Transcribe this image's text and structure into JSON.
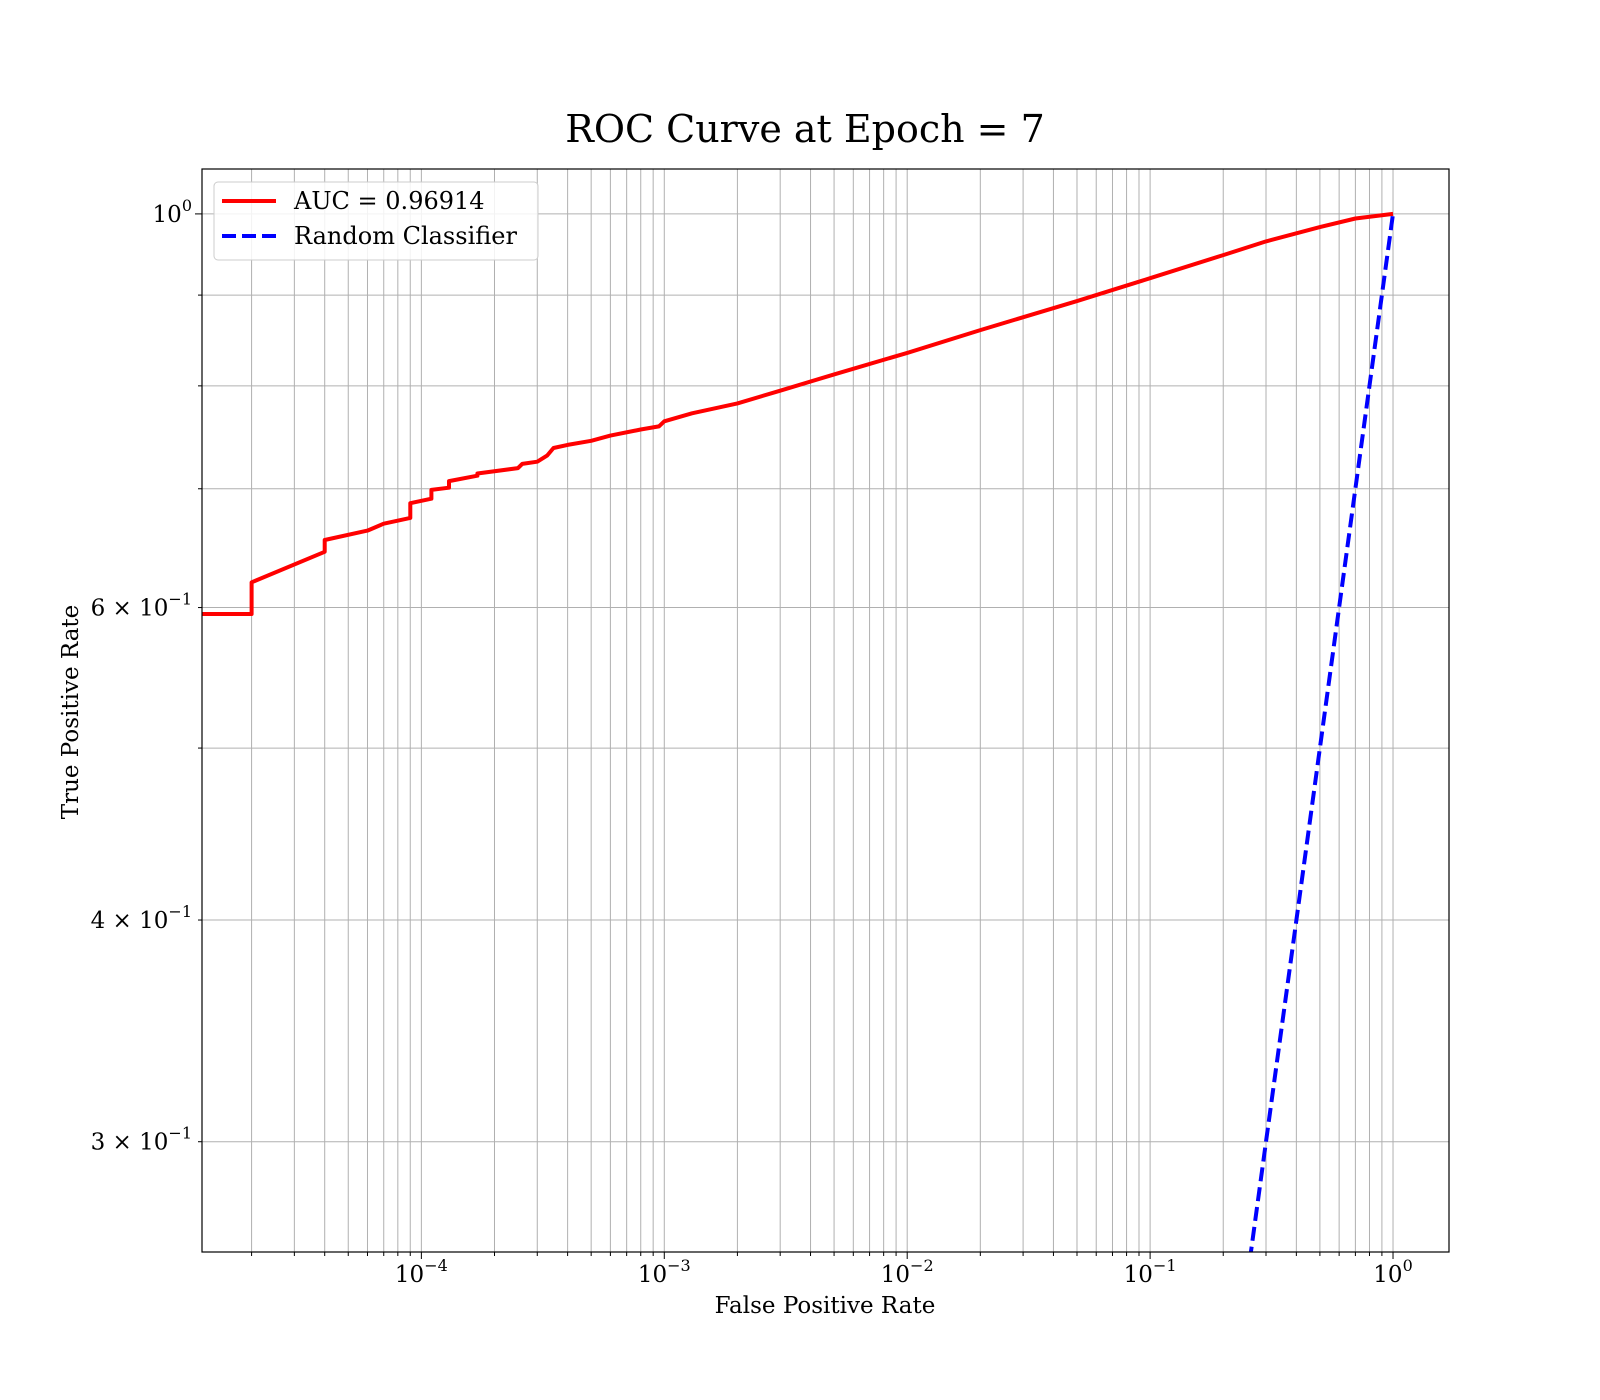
{
  "chart_data": {
    "type": "line",
    "title": "ROC Curve at Epoch = 7",
    "xlabel": "False Positive Rate",
    "ylabel": "True Positive Rate",
    "xscale": "log",
    "yscale": "log",
    "xlim": [
      1.25e-05,
      1.7
    ],
    "ylim": [
      0.26,
      1.06
    ],
    "grid": "both (major and minor)",
    "legend_position": "top-left",
    "x_ticks": [
      {
        "value": 0.0001,
        "base": "10",
        "exp": "−4"
      },
      {
        "value": 0.001,
        "base": "10",
        "exp": "−3"
      },
      {
        "value": 0.01,
        "base": "10",
        "exp": "−2"
      },
      {
        "value": 0.1,
        "base": "10",
        "exp": "−1"
      },
      {
        "value": 1,
        "base": "10",
        "exp": "0"
      }
    ],
    "y_ticks": [
      {
        "value": 1.0,
        "base": "10",
        "exp": "0"
      },
      {
        "value": 0.6,
        "base": "6 × 10",
        "exp": "−1"
      },
      {
        "value": 0.4,
        "base": "4 × 10",
        "exp": "−1"
      },
      {
        "value": 0.3,
        "base": "3 × 10",
        "exp": "−1"
      }
    ],
    "series": [
      {
        "name": "AUC = 0.96914",
        "color": "#ff0000",
        "style": "solid",
        "points": [
          [
            1.25e-05,
            0.595
          ],
          [
            2e-05,
            0.595
          ],
          [
            2e-05,
            0.62
          ],
          [
            4e-05,
            0.645
          ],
          [
            4e-05,
            0.655
          ],
          [
            6e-05,
            0.663
          ],
          [
            7e-05,
            0.669
          ],
          [
            9e-05,
            0.674
          ],
          [
            9e-05,
            0.687
          ],
          [
            0.00011,
            0.691
          ],
          [
            0.00011,
            0.699
          ],
          [
            0.00013,
            0.701
          ],
          [
            0.00013,
            0.707
          ],
          [
            0.00017,
            0.712
          ],
          [
            0.00017,
            0.714
          ],
          [
            0.00025,
            0.719
          ],
          [
            0.00026,
            0.723
          ],
          [
            0.0003,
            0.725
          ],
          [
            0.00033,
            0.731
          ],
          [
            0.00035,
            0.738
          ],
          [
            0.0004,
            0.741
          ],
          [
            0.0005,
            0.745
          ],
          [
            0.0006,
            0.75
          ],
          [
            0.0008,
            0.756
          ],
          [
            0.00095,
            0.759
          ],
          [
            0.001,
            0.764
          ],
          [
            0.0013,
            0.772
          ],
          [
            0.002,
            0.782
          ],
          [
            0.003,
            0.795
          ],
          [
            0.005,
            0.812
          ],
          [
            0.01,
            0.835
          ],
          [
            0.02,
            0.86
          ],
          [
            0.05,
            0.893
          ],
          [
            0.1,
            0.92
          ],
          [
            0.2,
            0.948
          ],
          [
            0.3,
            0.965
          ],
          [
            0.5,
            0.983
          ],
          [
            0.7,
            0.994
          ],
          [
            1.0,
            1.0
          ]
        ]
      },
      {
        "name": "Random Classifier",
        "color": "#0000ff",
        "style": "dashed",
        "points": [
          [
            0.232,
            0.232
          ],
          [
            0.3,
            0.3
          ],
          [
            0.4,
            0.4
          ],
          [
            0.6,
            0.6
          ],
          [
            1.0,
            1.0
          ]
        ]
      }
    ]
  }
}
